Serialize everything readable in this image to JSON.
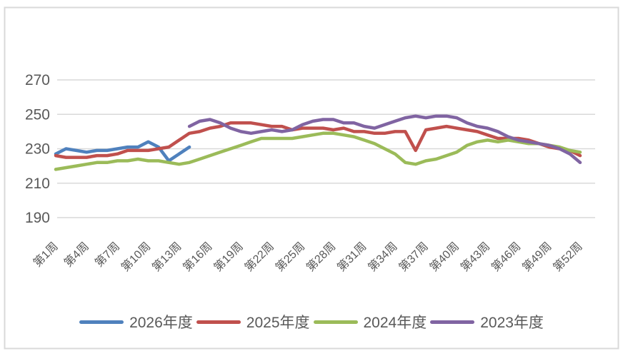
{
  "page": {
    "background": "#ffffff",
    "frame_border_color": "#d9d9d9"
  },
  "chart_data": {
    "type": "line",
    "title": "",
    "xlabel": "",
    "ylabel": "",
    "grid": true,
    "grid_color": "#d9d9d9",
    "text_color": "#595959",
    "legend_position": "bottom",
    "y_ticks": [
      190,
      210,
      230,
      250,
      270
    ],
    "ylim": [
      180,
      283
    ],
    "x_tick_interval": 3,
    "categories": [
      "第1周",
      "第2周",
      "第3周",
      "第4周",
      "第5周",
      "第6周",
      "第7周",
      "第8周",
      "第9周",
      "第10周",
      "第11周",
      "第12周",
      "第13周",
      "第14周",
      "第15周",
      "第16周",
      "第17周",
      "第18周",
      "第19周",
      "第20周",
      "第21周",
      "第22周",
      "第23周",
      "第24周",
      "第25周",
      "第26周",
      "第27周",
      "第28周",
      "第29周",
      "第30周",
      "第31周",
      "第32周",
      "第33周",
      "第34周",
      "第35周",
      "第36周",
      "第37周",
      "第38周",
      "第39周",
      "第40周",
      "第41周",
      "第42周",
      "第43周",
      "第44周",
      "第45周",
      "第46周",
      "第47周",
      "第48周",
      "第49周",
      "第50周",
      "第51周",
      "第52周"
    ],
    "series": [
      {
        "name": "2026年度",
        "color": "#4f81bd",
        "values": [
          227,
          230,
          229,
          228,
          229,
          229,
          230,
          231,
          231,
          234,
          231,
          223,
          227,
          231,
          null,
          null,
          null,
          null,
          null,
          null,
          null,
          null,
          null,
          null,
          null,
          null,
          null,
          null,
          null,
          null,
          null,
          null,
          null,
          null,
          null,
          null,
          null,
          null,
          null,
          null,
          null,
          null,
          null,
          null,
          null,
          null,
          null,
          null,
          null,
          null,
          null,
          null
        ]
      },
      {
        "name": "2025年度",
        "color": "#c0504d",
        "values": [
          226,
          225,
          225,
          225,
          226,
          226,
          227,
          229,
          229,
          229,
          230,
          231,
          235,
          239,
          240,
          242,
          243,
          245,
          245,
          245,
          244,
          243,
          243,
          241,
          242,
          242,
          242,
          241,
          242,
          240,
          240,
          239,
          239,
          240,
          240,
          229,
          241,
          242,
          243,
          242,
          241,
          240,
          238,
          236,
          236,
          236,
          235,
          233,
          231,
          230,
          229,
          226
        ]
      },
      {
        "name": "2024年度",
        "color": "#9bbb59",
        "values": [
          218,
          219,
          220,
          221,
          222,
          222,
          223,
          223,
          224,
          223,
          223,
          222,
          221,
          222,
          224,
          226,
          228,
          230,
          232,
          234,
          236,
          236,
          236,
          236,
          237,
          238,
          239,
          239,
          238,
          237,
          235,
          233,
          230,
          227,
          222,
          221,
          223,
          224,
          226,
          228,
          232,
          234,
          235,
          234,
          235,
          234,
          233,
          233,
          232,
          231,
          229,
          228
        ]
      },
      {
        "name": "2023年度",
        "color": "#8064a2",
        "values": [
          null,
          null,
          null,
          null,
          null,
          null,
          null,
          null,
          null,
          null,
          null,
          null,
          null,
          243,
          246,
          247,
          245,
          242,
          240,
          239,
          240,
          241,
          240,
          241,
          244,
          246,
          247,
          247,
          245,
          245,
          243,
          242,
          244,
          246,
          248,
          249,
          248,
          249,
          249,
          248,
          245,
          243,
          242,
          240,
          237,
          235,
          234,
          233,
          232,
          230,
          227,
          222
        ]
      }
    ]
  }
}
